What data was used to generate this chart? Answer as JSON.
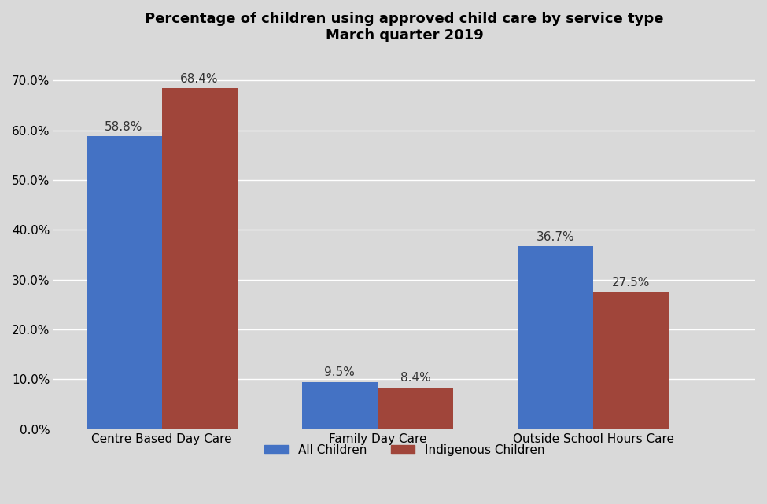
{
  "title_line1": "Percentage of children using approved child care by service type",
  "title_line2": "March quarter 2019",
  "categories": [
    "Centre Based Day Care",
    "Family Day Care",
    "Outside School Hours Care"
  ],
  "all_children": [
    58.8,
    9.5,
    36.7
  ],
  "indigenous_children": [
    68.4,
    8.4,
    27.5
  ],
  "all_children_color": "#4472C4",
  "indigenous_children_color": "#A0453A",
  "background_color": "#D9D9D9",
  "ylim": [
    0,
    75
  ],
  "yticks": [
    0,
    10,
    20,
    30,
    40,
    50,
    60,
    70
  ],
  "ytick_labels": [
    "0.0%",
    "10.0%",
    "20.0%",
    "30.0%",
    "40.0%",
    "50.0%",
    "60.0%",
    "70.0%"
  ],
  "legend_labels": [
    "All Children",
    "Indigenous Children"
  ],
  "bar_width": 0.7,
  "x_positions": [
    1,
    3,
    5
  ],
  "xlim": [
    0,
    6.5
  ],
  "title_fontsize": 13,
  "tick_fontsize": 11,
  "label_fontsize": 11,
  "annotation_fontsize": 11
}
